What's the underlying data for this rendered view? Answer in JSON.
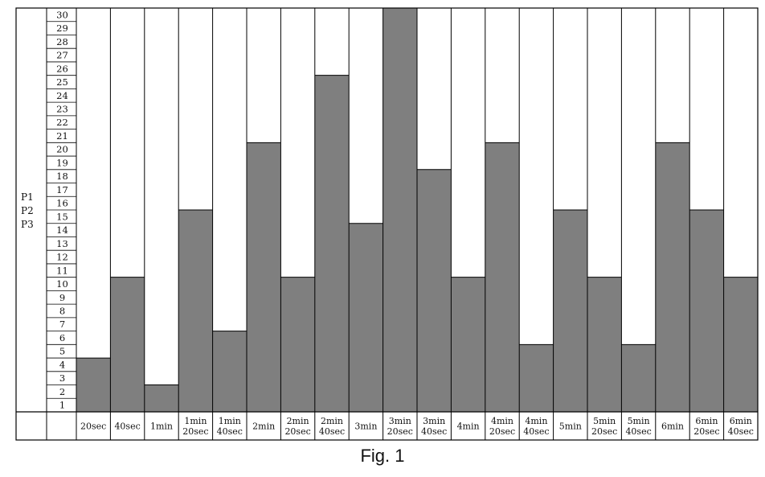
{
  "figure": {
    "caption": "Fig. 1"
  },
  "chart_data": {
    "type": "bar",
    "row_label_lines": [
      "P1",
      "P2",
      "P3"
    ],
    "ylim": [
      0,
      30
    ],
    "y_ticks": [
      1,
      2,
      3,
      4,
      5,
      6,
      7,
      8,
      9,
      10,
      11,
      12,
      13,
      14,
      15,
      16,
      17,
      18,
      19,
      20,
      21,
      22,
      23,
      24,
      25,
      26,
      27,
      28,
      29,
      30
    ],
    "categories": [
      [
        "20sec"
      ],
      [
        "40sec"
      ],
      [
        "1min"
      ],
      [
        "1min",
        "20sec"
      ],
      [
        "1min",
        "40sec"
      ],
      [
        "2min"
      ],
      [
        "2min",
        "20sec"
      ],
      [
        "2min",
        "40sec"
      ],
      [
        "3min"
      ],
      [
        "3min",
        "20sec"
      ],
      [
        "3min",
        "40sec"
      ],
      [
        "4min"
      ],
      [
        "4min",
        "20sec"
      ],
      [
        "4min",
        "40sec"
      ],
      [
        "5min"
      ],
      [
        "5min",
        "20sec"
      ],
      [
        "5min",
        "40sec"
      ],
      [
        "6min"
      ],
      [
        "6min",
        "20sec"
      ],
      [
        "6min",
        "40sec"
      ]
    ],
    "values": [
      4,
      10,
      2,
      15,
      6,
      20,
      10,
      25,
      14,
      30,
      18,
      10,
      20,
      5,
      15,
      10,
      5,
      20,
      15,
      10
    ],
    "colors": {
      "filled": "#7f7f7f",
      "empty": "#ffffff",
      "grid": "#000000"
    }
  }
}
